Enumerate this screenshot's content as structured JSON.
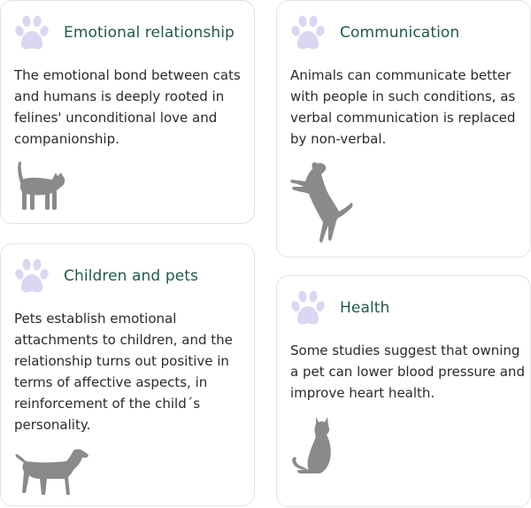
{
  "colors": {
    "title": "#1f5a44",
    "paw": "#dcd6f3",
    "animal": "#8a8a8a",
    "border": "#e3e3e3"
  },
  "cards": [
    {
      "title": "Emotional relationship",
      "text": "The emotional bond between cats and humans is deeply rooted in felines' unconditional love and companionship.",
      "icon": "paw-icon",
      "illustration": "cat-walking-icon"
    },
    {
      "title": "Communication",
      "text": "Animals can communicate better with people in such conditions, as verbal communication is replaced by non-verbal.",
      "icon": "paw-icon",
      "illustration": "dog-jumping-icon"
    },
    {
      "title": "Children and pets",
      "text": "Pets establish emotional attachments to children, and the relationship turns out positive in terms of affective aspects, in reinforcement of the child´s personality.",
      "icon": "paw-icon",
      "illustration": "dog-standing-icon"
    },
    {
      "title": "Health",
      "text": "Some studies suggest that owning a pet can lower blood pressure and improve heart health.",
      "icon": "paw-icon",
      "illustration": "cat-sitting-icon"
    }
  ]
}
